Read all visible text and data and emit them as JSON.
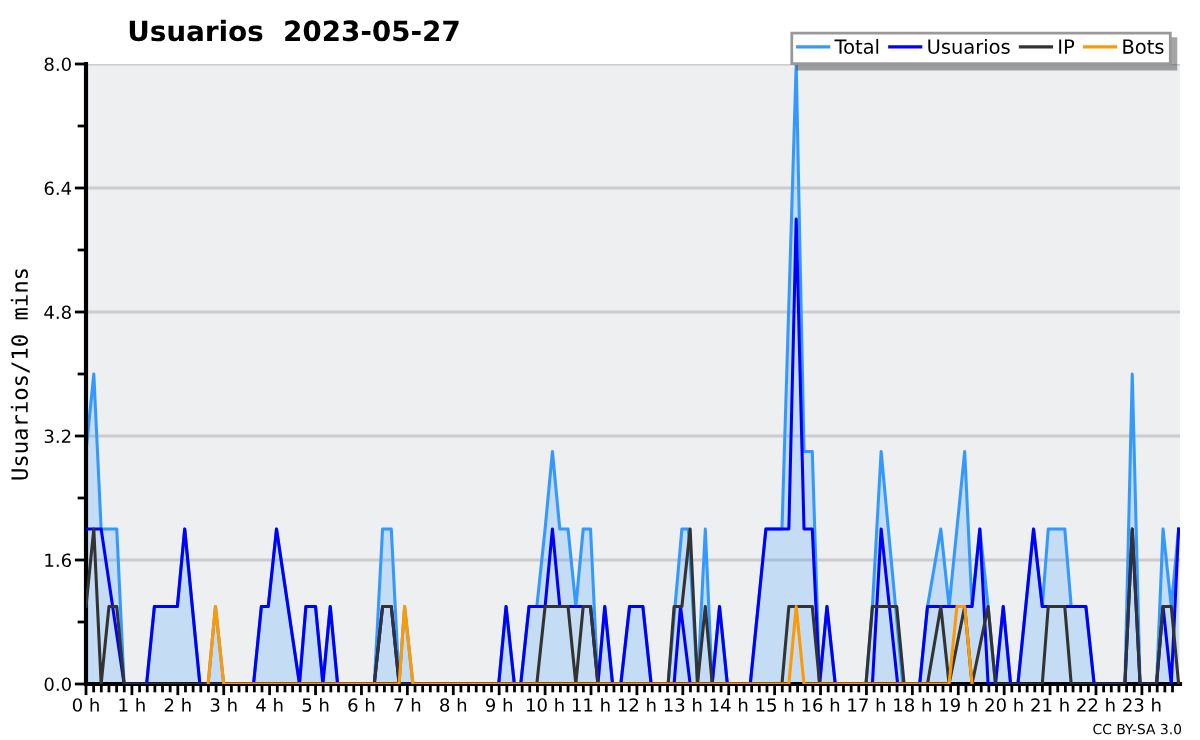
{
  "chart_data": {
    "type": "line",
    "title": "Usuarios  2023-05-27",
    "ylabel": "Usuarios/10 mins",
    "annotations": [
      "CC BY-SA 3.0"
    ],
    "xlim": [
      0,
      23.83
    ],
    "ylim": [
      0,
      8
    ],
    "xticks": [
      {
        "value": 0,
        "label": "0 h"
      },
      {
        "value": 1,
        "label": "1 h"
      },
      {
        "value": 2,
        "label": "2 h"
      },
      {
        "value": 3,
        "label": "3 h"
      },
      {
        "value": 4,
        "label": "4 h"
      },
      {
        "value": 5,
        "label": "5 h"
      },
      {
        "value": 6,
        "label": "6 h"
      },
      {
        "value": 7,
        "label": "7 h"
      },
      {
        "value": 8,
        "label": "8 h"
      },
      {
        "value": 9,
        "label": "9 h"
      },
      {
        "value": 10,
        "label": "10 h"
      },
      {
        "value": 11,
        "label": "11 h"
      },
      {
        "value": 12,
        "label": "12 h"
      },
      {
        "value": 13,
        "label": "13 h"
      },
      {
        "value": 14,
        "label": "14 h"
      },
      {
        "value": 15,
        "label": "15 h"
      },
      {
        "value": 16,
        "label": "16 h"
      },
      {
        "value": 17,
        "label": "17 h"
      },
      {
        "value": 18,
        "label": "18 h"
      },
      {
        "value": 19,
        "label": "19 h"
      },
      {
        "value": 20,
        "label": "20 h"
      },
      {
        "value": 21,
        "label": "21 h"
      },
      {
        "value": 22,
        "label": "22 h"
      },
      {
        "value": 23,
        "label": "23 h"
      }
    ],
    "yticks": [
      {
        "value": 0,
        "label": "0.0"
      },
      {
        "value": 1.6,
        "label": "1.6"
      },
      {
        "value": 3.2,
        "label": "3.2"
      },
      {
        "value": 4.8,
        "label": "4.8"
      },
      {
        "value": 6.4,
        "label": "6.4"
      },
      {
        "value": 8,
        "label": "8.0"
      }
    ],
    "grid": "y",
    "legend": "top right",
    "marker": "none",
    "line_style": "solid",
    "series": [
      {
        "name": "Total",
        "type": "area",
        "color": "#3399ff",
        "x": [
          0,
          0.17,
          0.33,
          0.67,
          0.83,
          1.32,
          1.49,
          1.99,
          2.15,
          2.48,
          2.66,
          2.82,
          3.0,
          3.65,
          3.82,
          3.97,
          4.15,
          4.65,
          4.79,
          5.0,
          5.16,
          5.32,
          5.48,
          6.28,
          6.46,
          6.65,
          6.82,
          6.94,
          7.12,
          8.99,
          9.15,
          9.33,
          9.47,
          9.65,
          9.82,
          10.0,
          10.16,
          10.32,
          10.5,
          10.67,
          10.83,
          10.99,
          11.15,
          11.3,
          11.47,
          11.65,
          11.84,
          12.13,
          12.31,
          12.68,
          12.98,
          13.12,
          13.32,
          13.49,
          13.64,
          13.8,
          13.97,
          14.47,
          14.81,
          15.16,
          15.47,
          15.64,
          15.82,
          15.98,
          16.14,
          16.32,
          16.99,
          17.13,
          17.32,
          17.79,
          18.16,
          18.33,
          18.62,
          18.8,
          18.97,
          19.14,
          19.3,
          19.47,
          19.65,
          19.81,
          19.98,
          20.14,
          20.3,
          20.64,
          20.83,
          20.96,
          21.32,
          21.46,
          21.78,
          21.96,
          22.63,
          22.79,
          22.96,
          23.32,
          23.46,
          23.64,
          23.8
        ],
        "values": [
          3,
          4,
          2,
          2,
          0,
          0,
          1,
          1,
          2,
          0,
          0,
          1,
          0,
          0,
          1,
          1,
          2,
          0,
          1,
          1,
          0,
          1,
          0,
          0,
          2,
          2,
          0,
          1,
          0,
          0,
          1,
          0,
          0,
          1,
          1,
          2,
          3,
          2,
          2,
          1,
          2,
          2,
          0,
          1,
          0,
          0,
          1,
          1,
          0,
          0,
          2,
          2,
          0,
          2,
          0,
          1,
          0,
          0,
          2,
          2,
          8,
          3,
          3,
          0,
          1,
          0,
          0,
          1,
          3,
          0,
          0,
          1,
          2,
          1,
          2,
          3,
          1,
          2,
          1,
          0,
          1,
          0,
          0,
          2,
          1,
          2,
          2,
          1,
          1,
          0,
          0,
          4,
          0,
          0,
          2,
          1,
          2
        ]
      },
      {
        "name": "Usuarios",
        "color": "#0000ff",
        "x": [
          0,
          0.33,
          0.83,
          1.32,
          1.49,
          1.99,
          2.15,
          2.48,
          3.65,
          3.82,
          3.97,
          4.15,
          4.65,
          4.79,
          5.0,
          5.16,
          5.32,
          5.48,
          6.28,
          6.46,
          6.65,
          6.82,
          8.99,
          9.15,
          9.33,
          9.47,
          9.65,
          9.82,
          10.0,
          10.16,
          10.32,
          10.99,
          11.15,
          11.3,
          11.47,
          11.65,
          11.84,
          12.13,
          12.31,
          12.81,
          12.95,
          13.16,
          13.64,
          13.8,
          13.97,
          14.47,
          14.81,
          15.31,
          15.47,
          15.64,
          15.82,
          15.98,
          16.14,
          16.32,
          17.13,
          17.32,
          17.68,
          18.16,
          18.33,
          19.3,
          19.47,
          19.65,
          19.81,
          19.98,
          20.14,
          20.3,
          20.64,
          20.83,
          21.78,
          21.96,
          22.63,
          22.79,
          22.96,
          23.32,
          23.46,
          23.64,
          23.8
        ],
        "values": [
          2,
          2,
          0,
          0,
          1,
          1,
          2,
          0,
          0,
          1,
          1,
          2,
          0,
          1,
          1,
          0,
          1,
          0,
          0,
          1,
          1,
          0,
          0,
          1,
          0,
          0,
          1,
          1,
          1,
          2,
          1,
          1,
          0,
          1,
          0,
          0,
          1,
          1,
          0,
          0,
          1,
          0,
          0,
          1,
          0,
          0,
          2,
          2,
          6,
          2,
          2,
          0,
          1,
          0,
          0,
          2,
          0,
          0,
          1,
          1,
          2,
          0,
          0,
          1,
          0,
          0,
          2,
          1,
          1,
          0,
          0,
          2,
          0,
          0,
          1,
          0,
          2
        ]
      },
      {
        "name": "IP",
        "color": "#333333",
        "x": [
          0,
          0.17,
          0.33,
          0.5,
          0.67,
          0.83,
          6.28,
          6.46,
          6.65,
          6.82,
          9.82,
          10.0,
          10.5,
          10.67,
          10.83,
          10.99,
          11.15,
          12.68,
          12.81,
          12.98,
          13.16,
          13.32,
          13.49,
          13.64,
          15.16,
          15.31,
          15.82,
          15.98,
          16.99,
          17.13,
          17.66,
          17.82,
          18.33,
          18.62,
          18.8,
          19.14,
          19.3,
          19.65,
          19.81,
          20.83,
          20.96,
          21.32,
          21.46,
          22.63,
          22.79,
          22.96,
          23.32,
          23.46,
          23.64,
          23.8
        ],
        "values": [
          1,
          2,
          0,
          1,
          1,
          0,
          0,
          1,
          1,
          0,
          0,
          1,
          1,
          0,
          1,
          1,
          0,
          0,
          1,
          1,
          2,
          0,
          1,
          0,
          0,
          1,
          1,
          0,
          0,
          1,
          1,
          0,
          0,
          1,
          0,
          1,
          0,
          1,
          0,
          0,
          1,
          1,
          0,
          0,
          2,
          0,
          0,
          1,
          1,
          0
        ]
      },
      {
        "name": "Bots",
        "color": "#ff9900",
        "x": [
          2.66,
          2.82,
          3.0,
          6.82,
          6.94,
          7.12,
          15.31,
          15.47,
          15.64,
          18.8,
          18.97,
          19.14,
          19.3
        ],
        "values": [
          0,
          1,
          0,
          0,
          1,
          0,
          0,
          1,
          0,
          0,
          1,
          1,
          0
        ]
      }
    ]
  }
}
